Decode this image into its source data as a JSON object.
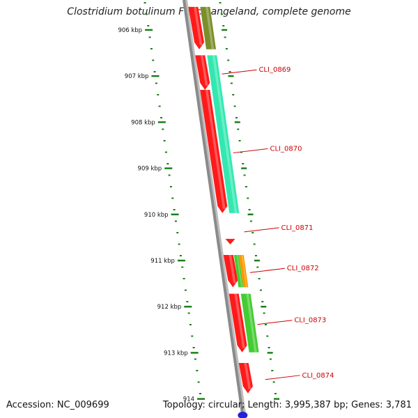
{
  "title": "Clostridium botulinum F str. Langeland, complete genome",
  "accession_text": "Accession: NC_009699",
  "summary_text": "Topology: circular; Length: 3,995,387 bp; Genes: 3,781",
  "colors": {
    "backbone": "#8a8a8a",
    "tick": "#1a7f1a",
    "gene_label": "#cc0000",
    "cds": "#ff1a1a",
    "cog_olive": "#7a8f2a",
    "cog_teal": "#33e8b0",
    "cog_green": "#44cc33",
    "cog_orange": "#ff9900",
    "start_marker": "#2222dd"
  },
  "scale_labels": [
    {
      "text": "906 kbp",
      "kbp": 906
    },
    {
      "text": "907 kbp",
      "kbp": 907
    },
    {
      "text": "908 kbp",
      "kbp": 908
    },
    {
      "text": "909 kbp",
      "kbp": 909
    },
    {
      "text": "910 kbp",
      "kbp": 910
    },
    {
      "text": "911 kbp",
      "kbp": 911
    },
    {
      "text": "912 kbp",
      "kbp": 912
    },
    {
      "text": "913 kbp",
      "kbp": 913
    },
    {
      "text": "914",
      "kbp": 914
    }
  ],
  "genes": [
    {
      "label": "",
      "start_kbp": 905.5,
      "end_kbp": 906.42,
      "cog": "cog_olive"
    },
    {
      "label": "CLI_0869",
      "start_kbp": 906.55,
      "end_kbp": 907.3,
      "cog": "cog_teal"
    },
    {
      "label": "CLI_0870",
      "start_kbp": 907.3,
      "end_kbp": 909.97,
      "cog": "cog_teal"
    },
    {
      "label": "CLI_0871",
      "start_kbp": 910.53,
      "end_kbp": 910.63,
      "cog": ""
    },
    {
      "label": "CLI_0872",
      "start_kbp": 910.88,
      "end_kbp": 911.58,
      "cog": "cog_orange"
    },
    {
      "label": "CLI_0873",
      "start_kbp": 911.72,
      "end_kbp": 912.99,
      "cog": "cog_green"
    },
    {
      "label": "CLI_0874",
      "start_kbp": 913.22,
      "end_kbp": 913.88,
      "cog": ""
    }
  ]
}
